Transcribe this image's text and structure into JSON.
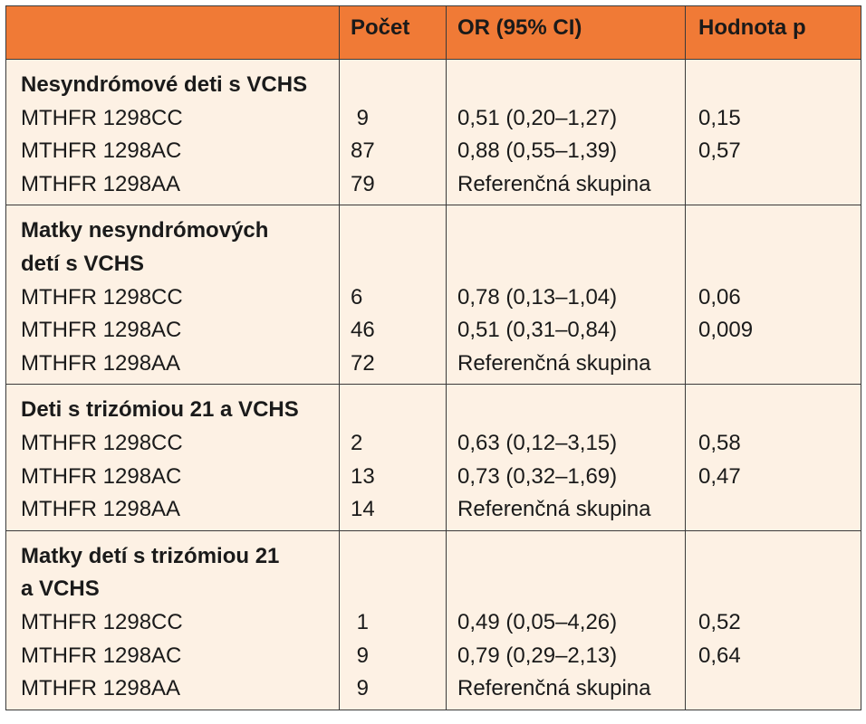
{
  "headers": [
    "",
    "Počet",
    "OR (95% CI)",
    "Hodnota p"
  ],
  "groups": [
    {
      "title": [
        "Nesyndrómové deti s VCHS"
      ],
      "rows": [
        {
          "genotype": "MTHFR 1298CC",
          "count": " 9",
          "or": "0,51 (0,20–1,27)",
          "p": "0,15"
        },
        {
          "genotype": "MTHFR 1298AC",
          "count": "87",
          "or": "0,88 (0,55–1,39)",
          "p": "0,57"
        },
        {
          "genotype": "MTHFR 1298AA",
          "count": "79",
          "or": "Referenčná skupina",
          "p": ""
        }
      ]
    },
    {
      "title": [
        "Matky nesyndrómových",
        "detí s VCHS"
      ],
      "rows": [
        {
          "genotype": "MTHFR 1298CC",
          "count": "6",
          "or": "0,78 (0,13–1,04)",
          "p": "0,06"
        },
        {
          "genotype": "MTHFR 1298AC",
          "count": "46",
          "or": "0,51 (0,31–0,84)",
          "p": "0,009"
        },
        {
          "genotype": "MTHFR 1298AA",
          "count": "72",
          "or": "Referenčná skupina",
          "p": ""
        }
      ]
    },
    {
      "title": [
        "Deti s trizómiou 21 a VCHS"
      ],
      "rows": [
        {
          "genotype": "MTHFR 1298CC",
          "count": "2",
          "or": "0,63 (0,12–3,15)",
          "p": "0,58"
        },
        {
          "genotype": "MTHFR 1298AC",
          "count": "13",
          "or": "0,73 (0,32–1,69)",
          "p": "0,47"
        },
        {
          "genotype": "MTHFR 1298AA",
          "count": "14",
          "or": "Referenčná skupina",
          "p": ""
        }
      ]
    },
    {
      "title": [
        "Matky detí s trizómiou 21",
        "a VCHS"
      ],
      "rows": [
        {
          "genotype": "MTHFR 1298CC",
          "count": " 1",
          "or": "0,49 (0,05–4,26)",
          "p": "0,52"
        },
        {
          "genotype": "MTHFR 1298AC",
          "count": " 9",
          "or": "0,79 (0,29–2,13)",
          "p": "0,64"
        },
        {
          "genotype": "MTHFR 1298AA",
          "count": " 9",
          "or": "Referenčná skupina",
          "p": ""
        }
      ]
    }
  ],
  "colors": {
    "header_bg": "#f07a36",
    "body_bg": "#fdf1e4",
    "border": "#3a3a3a"
  }
}
